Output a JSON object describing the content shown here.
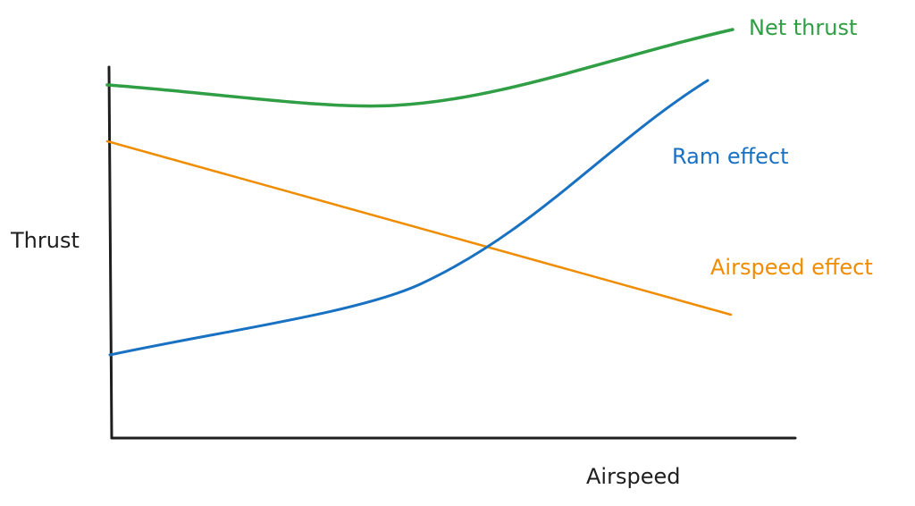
{
  "axes": {
    "y_label": "Thrust",
    "x_label": "Airspeed"
  },
  "curves": [
    {
      "label": "Net thrust"
    },
    {
      "label": "Ram effect"
    },
    {
      "label": "Airspeed effect"
    }
  ]
}
